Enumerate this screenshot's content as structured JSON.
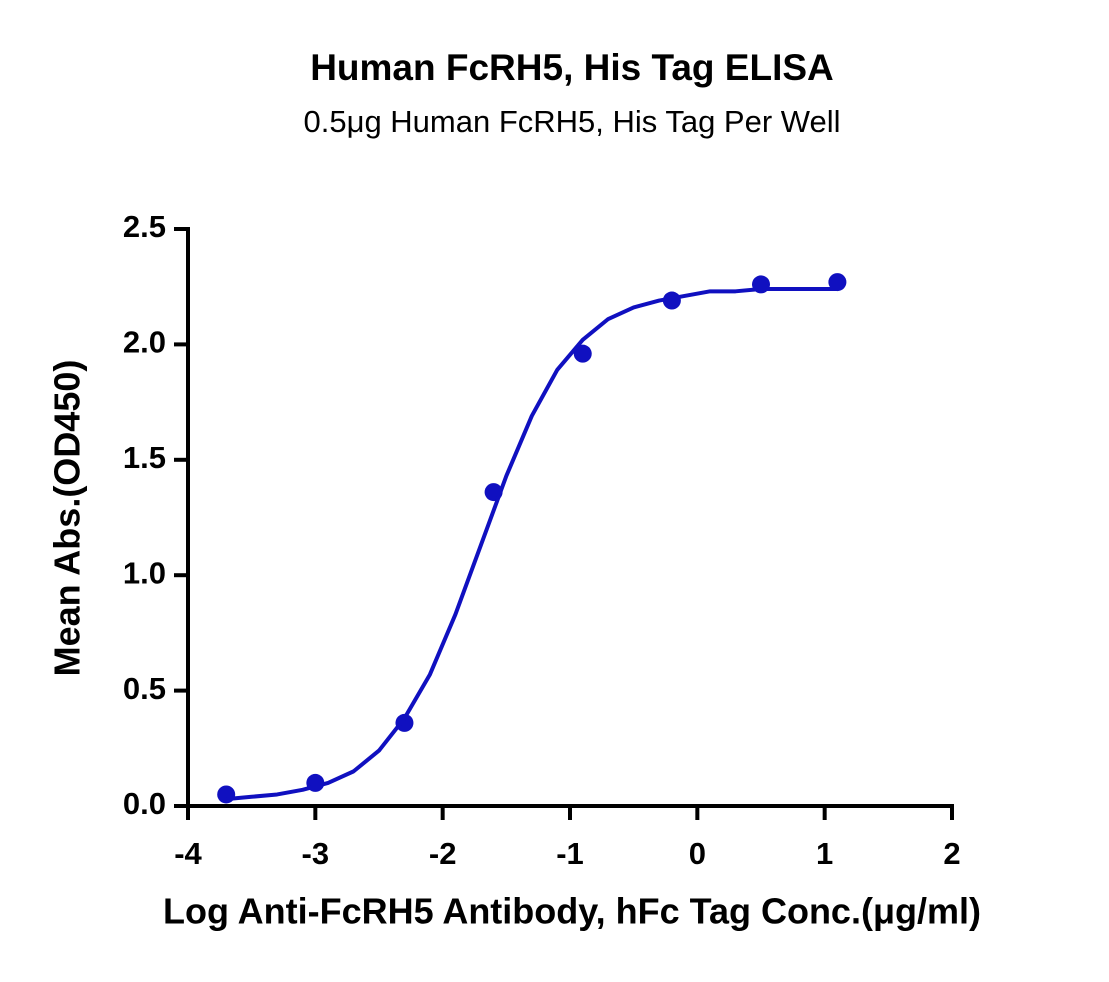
{
  "chart_data": {
    "type": "scatter",
    "title": "Human FcRH5, His Tag ELISA",
    "subtitle": "0.5μg Human FcRH5, His Tag Per Well",
    "x_label": "Log Anti-FcRH5 Antibody, hFc Tag Conc.(μg/ml)",
    "y_label": "Mean Abs.(OD450)",
    "xlim": [
      -4,
      2
    ],
    "xticks": [
      -4,
      -3,
      -2,
      -1,
      0,
      1,
      2
    ],
    "ylim": [
      0,
      2.5
    ],
    "yticks": [
      {
        "value": 0,
        "label": "0.0"
      },
      {
        "value": 0.5,
        "label": "0.5"
      },
      {
        "value": 1,
        "label": "1.0"
      },
      {
        "value": 1.5,
        "label": "1.5"
      },
      {
        "value": 2,
        "label": "2.0"
      },
      {
        "value": 2.5,
        "label": "2.5"
      }
    ],
    "grid": false,
    "series": [
      {
        "type": "scatter",
        "color": "#1010c0",
        "x": [
          -3.7,
          -3,
          -2.3,
          -1.6,
          -0.9,
          -0.2,
          0.5,
          1.1
        ],
        "values": [
          0.05,
          0.1,
          0.36,
          1.36,
          1.96,
          2.19,
          2.26,
          2.27
        ]
      },
      {
        "type": "line",
        "color": "#1010c0",
        "x": [
          -3.7,
          -3.5,
          -3.3,
          -3.1,
          -2.9,
          -2.7,
          -2.5,
          -2.3,
          -2.1,
          -1.9,
          -1.7,
          -1.5,
          -1.3,
          -1.1,
          -0.9,
          -0.7,
          -0.5,
          -0.3,
          -0.1,
          0.1,
          0.3,
          0.5,
          0.7,
          0.9,
          1.1
        ],
        "values": [
          0.03,
          0.04,
          0.05,
          0.07,
          0.1,
          0.15,
          0.24,
          0.38,
          0.57,
          0.83,
          1.13,
          1.43,
          1.69,
          1.89,
          2.02,
          2.11,
          2.16,
          2.19,
          2.21,
          2.23,
          2.23,
          2.24,
          2.24,
          2.24,
          2.24
        ]
      }
    ]
  }
}
